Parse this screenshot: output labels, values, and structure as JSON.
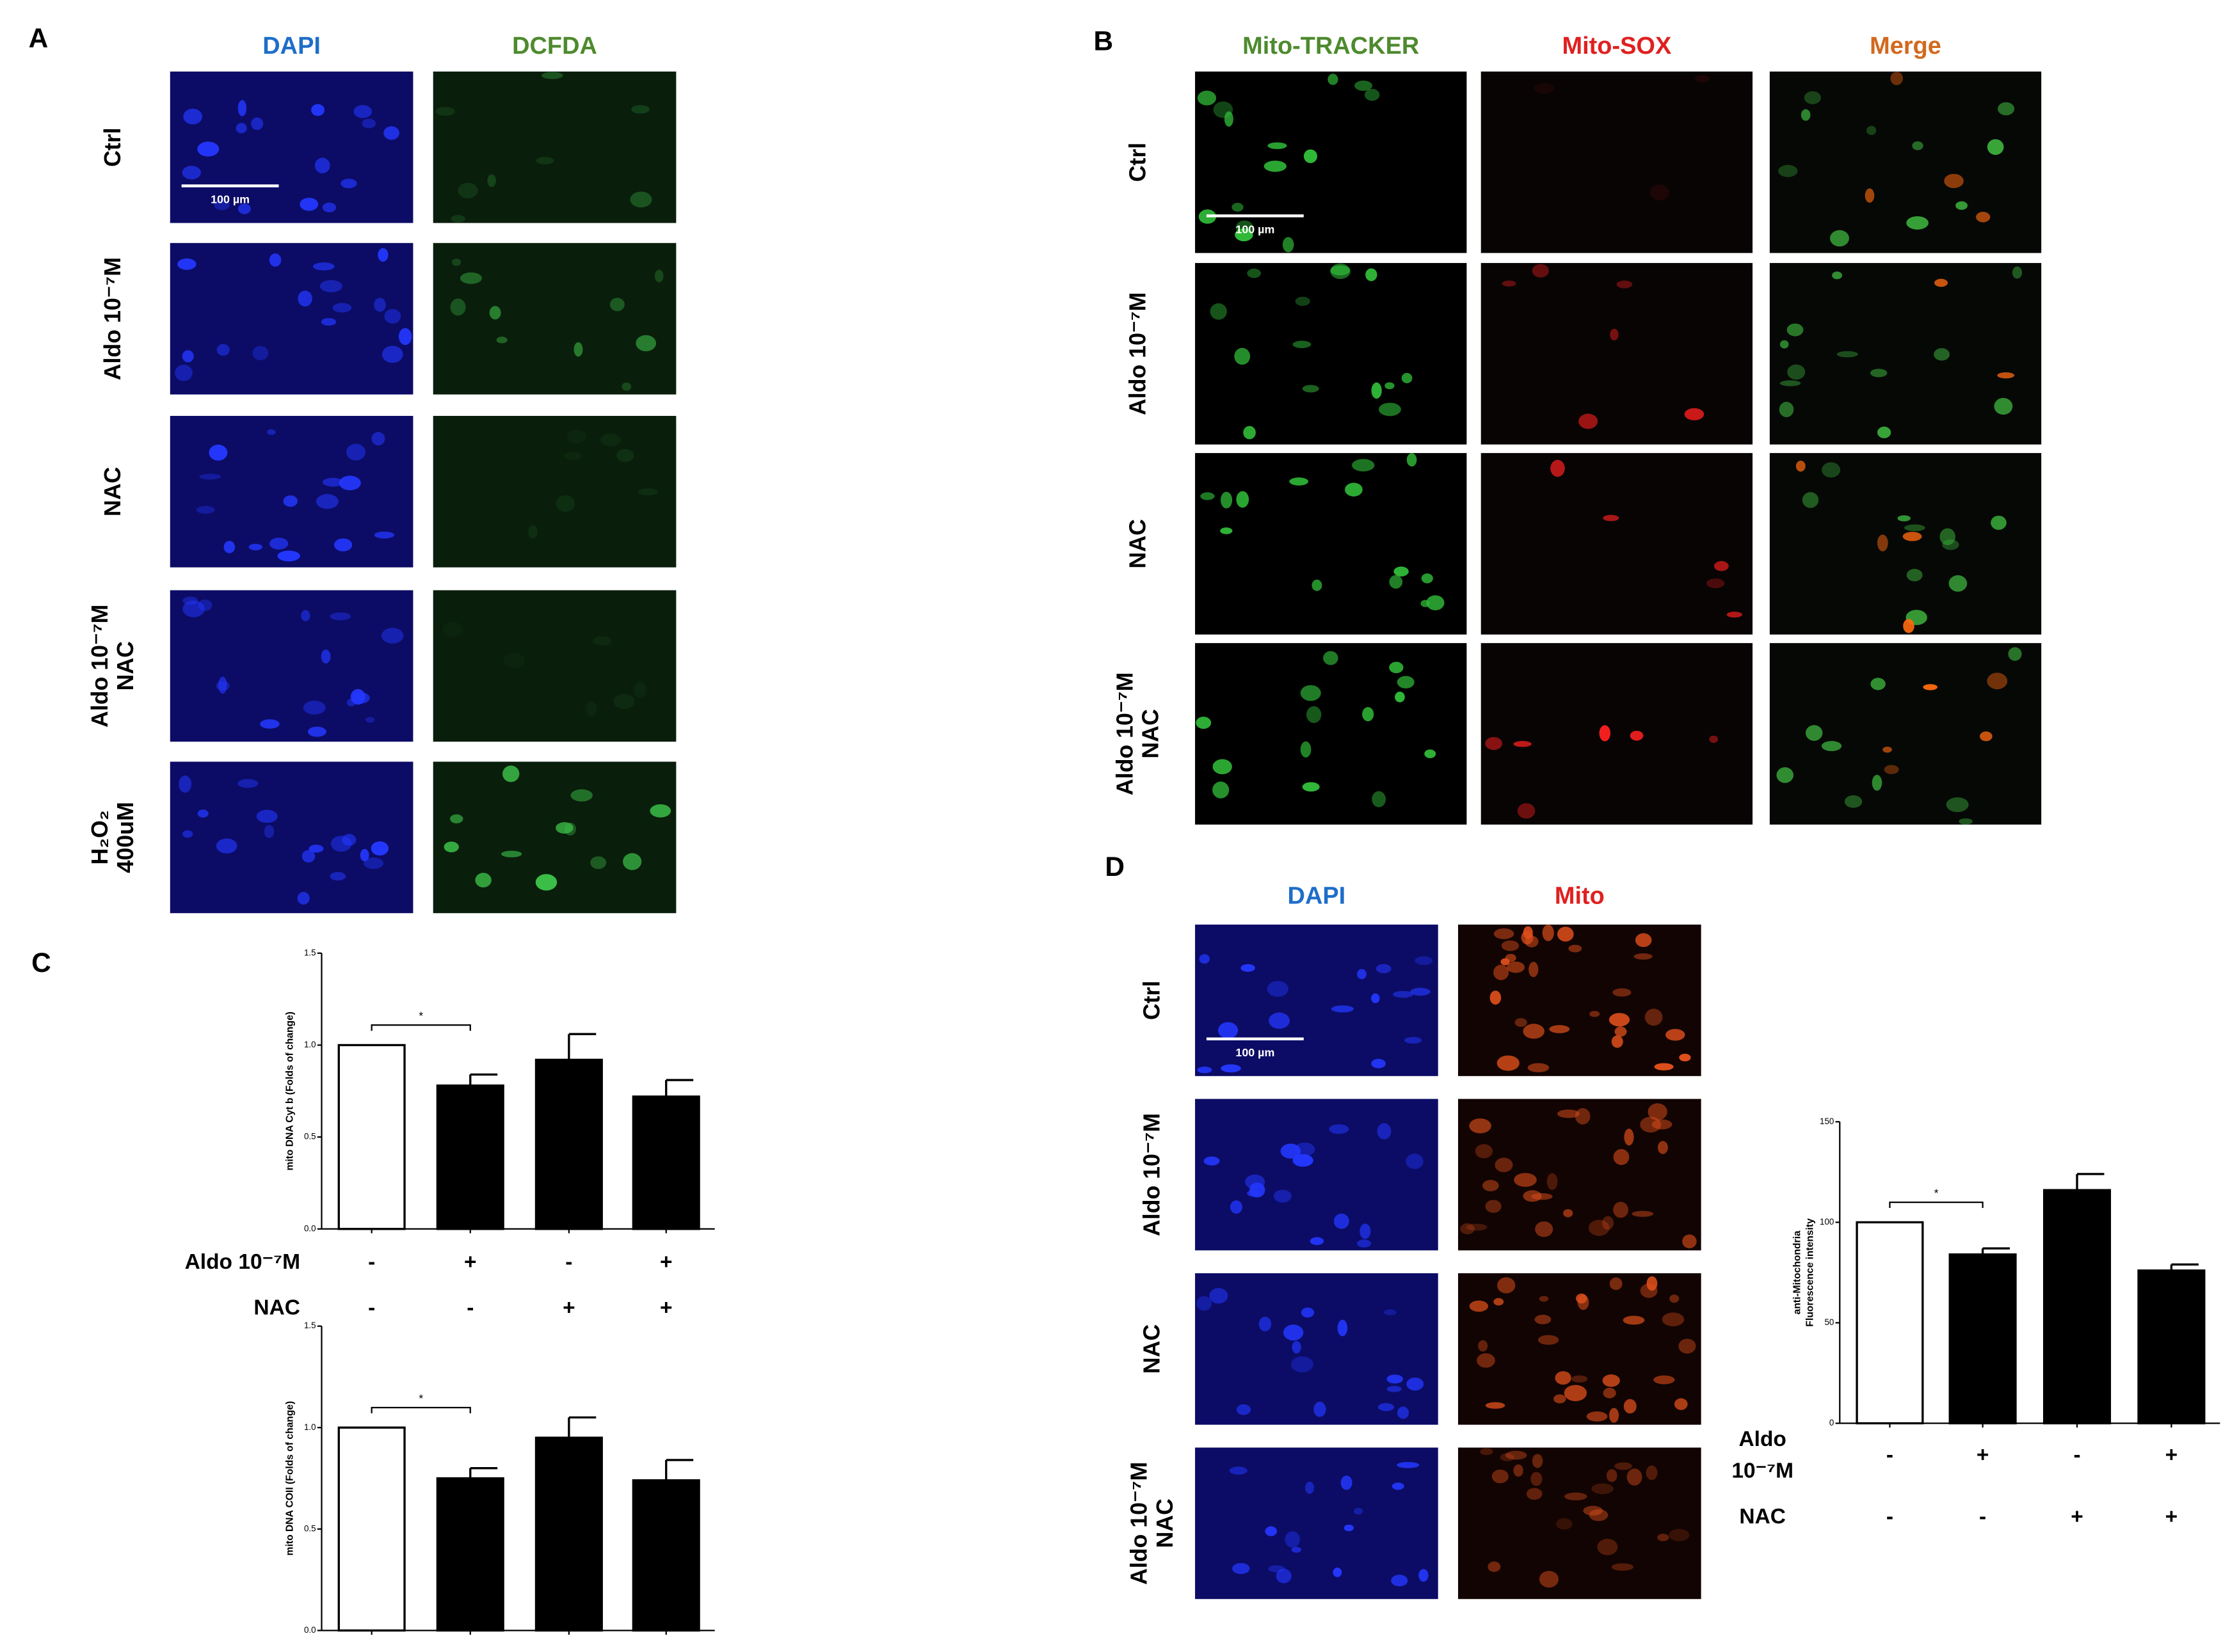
{
  "panels": [
    {
      "label": "A",
      "columns": [
        {
          "label": "DAPI",
          "color": "#1e6ec8"
        },
        {
          "label": "DCFDA",
          "color": "#4e8a2e"
        }
      ],
      "rows": [
        [
          "Ctrl"
        ],
        [
          "Aldo 10⁻⁷M"
        ],
        [
          "NAC"
        ],
        [
          "Aldo 10⁻⁷M",
          "NAC"
        ],
        [
          "H₂O₂",
          "400uM"
        ]
      ],
      "scale_bar": "100 µm"
    },
    {
      "label": "B",
      "columns": [
        {
          "label": "Mito-TRACKER",
          "color": "#4e8a2e"
        },
        {
          "label": "Mito-SOX",
          "color": "#e02020"
        },
        {
          "label": "Merge",
          "color": "#d2691e"
        }
      ],
      "rows": [
        [
          "Ctrl"
        ],
        [
          "Aldo 10⁻⁷M"
        ],
        [
          "NAC"
        ],
        [
          "Aldo 10⁻⁷M",
          "NAC"
        ]
      ],
      "scale_bar": "100 µm"
    },
    {
      "label": "C"
    },
    {
      "label": "D",
      "columns": [
        {
          "label": "DAPI",
          "color": "#1e6ec8"
        },
        {
          "label": "Mito",
          "color": "#e02020"
        }
      ],
      "rows": [
        [
          "Ctrl"
        ],
        [
          "Aldo 10⁻⁷M"
        ],
        [
          "NAC"
        ],
        [
          "Aldo 10⁻⁷M",
          "NAC"
        ]
      ],
      "scale_bar": "100 µm"
    }
  ],
  "chart_data": [
    {
      "type": "bar",
      "y_label": "mito DNA Cyt b (Folds of change)",
      "values": [
        1,
        0.78,
        0.92,
        0.72
      ],
      "errors": [
        null,
        0.06,
        0.14,
        0.09
      ],
      "colors": [
        "#ffffff",
        "#000000",
        "#000000",
        "#000000"
      ],
      "ylim": [
        0,
        1.5
      ],
      "yticks": [
        {
          "value": 0,
          "label": "0.0"
        },
        0.5,
        {
          "value": 1,
          "label": "1.0"
        },
        1.5
      ],
      "annotation": "*",
      "conditions": [
        {
          "name": [
            "Aldo 10⁻⁷M"
          ],
          "values": [
            "-",
            "+",
            "-",
            "+"
          ]
        },
        {
          "name": [
            "NAC"
          ],
          "values": [
            "-",
            "-",
            "+",
            "+"
          ]
        }
      ]
    },
    {
      "type": "bar",
      "y_label": "mito DNA COII (Folds of change)",
      "values": [
        1,
        0.75,
        0.95,
        0.74
      ],
      "errors": [
        null,
        0.05,
        0.1,
        0.1
      ],
      "colors": [
        "#ffffff",
        "#000000",
        "#000000",
        "#000000"
      ],
      "ylim": [
        0,
        1.5
      ],
      "yticks": [
        {
          "value": 0,
          "label": "0.0"
        },
        0.5,
        {
          "value": 1,
          "label": "1.0"
        },
        1.5
      ],
      "annotation": "*"
    },
    {
      "type": "bar",
      "y_label": [
        "anti-Mitochondria",
        "Fluorescence intensity"
      ],
      "values": [
        100,
        84,
        116,
        76
      ],
      "errors": [
        null,
        3,
        8,
        3
      ],
      "colors": [
        "#ffffff",
        "#000000",
        "#000000",
        "#000000"
      ],
      "ylim": [
        0,
        150
      ],
      "yticks": [
        0,
        50,
        100,
        150
      ],
      "annotation": "*",
      "conditions": [
        {
          "name": [
            "Aldo",
            "10⁻⁷M"
          ],
          "values": [
            "-",
            "+",
            "-",
            "+"
          ]
        },
        {
          "name": [
            "NAC"
          ],
          "values": [
            "-",
            "-",
            "+",
            "+"
          ]
        }
      ]
    }
  ]
}
